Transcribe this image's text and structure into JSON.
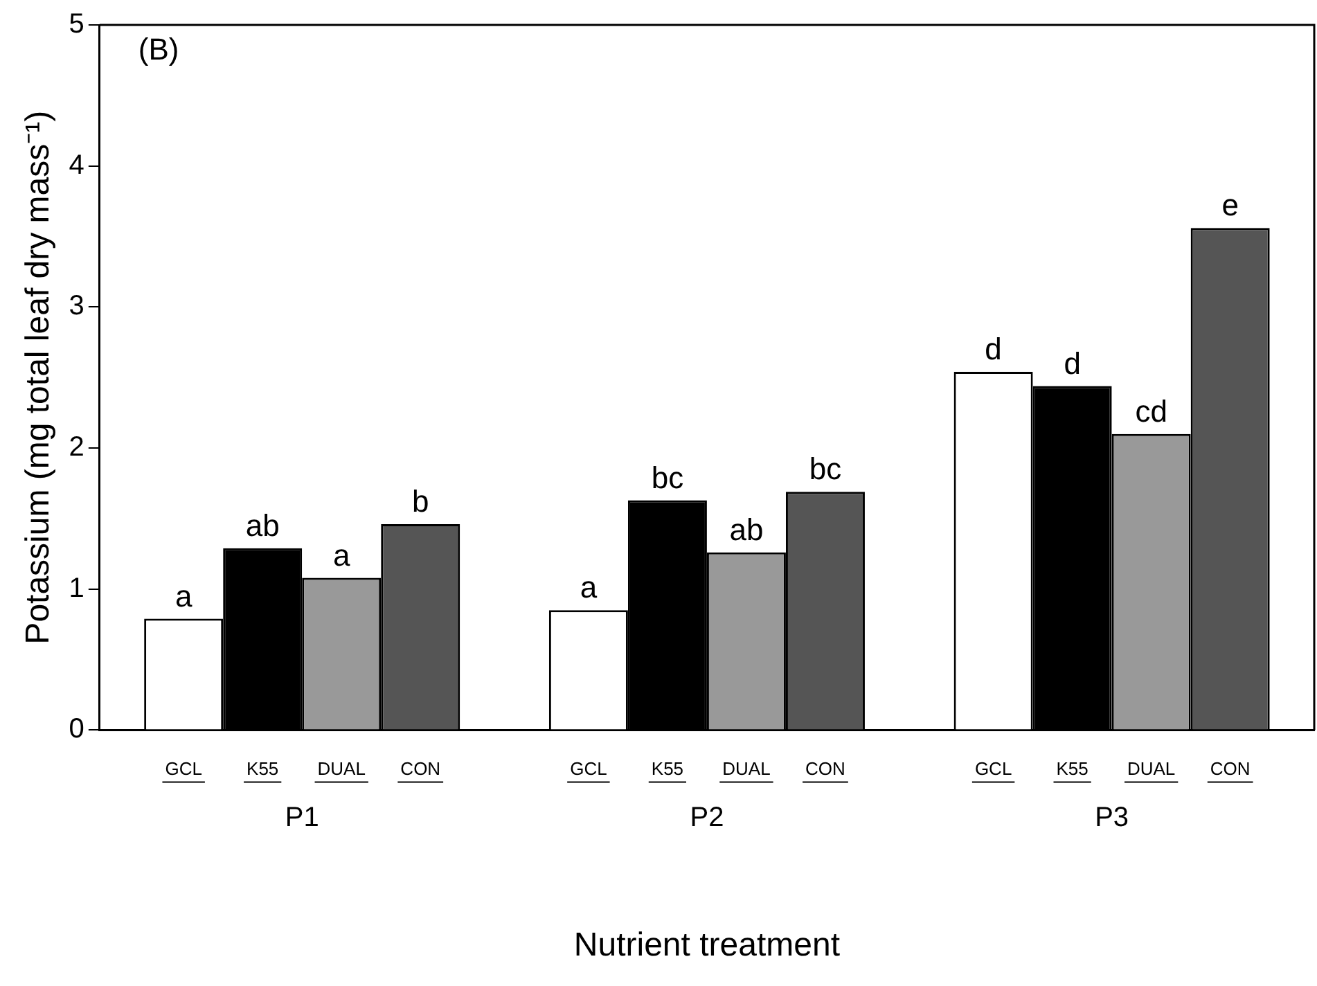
{
  "chart_data": {
    "type": "bar",
    "xlabel": "Nutrient treatment",
    "ylabel": "Potassium (mg total leaf dry mass⁻¹)",
    "annotations": [
      "(B)"
    ],
    "categories": [
      "P1",
      "P2",
      "P3"
    ],
    "series": [
      {
        "name": "GCL",
        "color": "#ffffff",
        "values": [
          0.79,
          0.85,
          2.54
        ],
        "value_labels": [
          "a",
          "a",
          "d"
        ]
      },
      {
        "name": "K55",
        "color": "#000000",
        "values": [
          1.29,
          1.63,
          2.44
        ],
        "value_labels": [
          "ab",
          "bc",
          "d"
        ]
      },
      {
        "name": "DUAL",
        "color": "#999999",
        "values": [
          1.08,
          1.26,
          2.1
        ],
        "value_labels": [
          "a",
          "ab",
          "cd"
        ]
      },
      {
        "name": "CON",
        "color": "#555555",
        "values": [
          1.46,
          1.69,
          3.56
        ],
        "value_labels": [
          "b",
          "bc",
          "e"
        ]
      }
    ],
    "ylim": [
      0,
      5
    ],
    "yticks": [
      0,
      1,
      2,
      3,
      4,
      5
    ],
    "grid": false,
    "legend": false
  }
}
